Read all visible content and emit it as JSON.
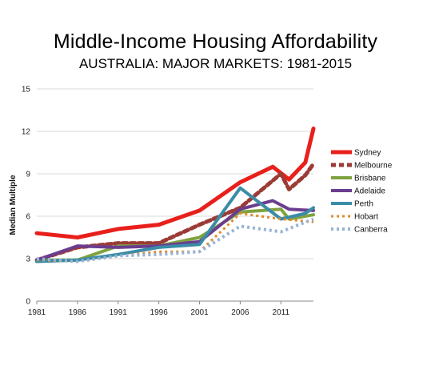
{
  "chart_data": {
    "type": "line",
    "title": "Middle-Income Housing Affordability",
    "subtitle": "AUSTRALIA: MAJOR MARKETS: 1981-2015",
    "xlabel": "",
    "ylabel": "Median Multiple",
    "xlim": [
      1981,
      2015
    ],
    "ylim": [
      0,
      15
    ],
    "yticks": [
      0,
      3,
      6,
      9,
      12,
      15
    ],
    "xticks": [
      1981,
      1986,
      1991,
      1996,
      2001,
      2006,
      2011
    ],
    "grid": "horizontal",
    "legend_position": "right",
    "series": [
      {
        "name": "Sydney",
        "color": "#e8201c",
        "style": "solid",
        "width": 5,
        "x": [
          1981,
          1986,
          1991,
          1996,
          2001,
          2006,
          2010,
          2012,
          2014,
          2015
        ],
        "y": [
          4.8,
          4.5,
          5.1,
          5.4,
          6.4,
          8.4,
          9.5,
          8.6,
          9.8,
          12.2
        ]
      },
      {
        "name": "Melbourne",
        "color": "#9b3b36",
        "style": "dashed",
        "width": 5,
        "x": [
          1981,
          1986,
          1991,
          1996,
          2001,
          2006,
          2011,
          2012,
          2014,
          2015
        ],
        "y": [
          2.9,
          3.8,
          4.1,
          4.1,
          5.4,
          6.6,
          9.0,
          7.9,
          8.9,
          9.7
        ]
      },
      {
        "name": "Brisbane",
        "color": "#7fa23f",
        "style": "solid",
        "width": 4,
        "x": [
          1981,
          1986,
          1991,
          1996,
          2001,
          2006,
          2011,
          2012,
          2015
        ],
        "y": [
          2.9,
          2.9,
          3.9,
          3.9,
          4.5,
          6.3,
          6.5,
          5.8,
          6.1
        ]
      },
      {
        "name": "Adelaide",
        "color": "#6b3d8f",
        "style": "solid",
        "width": 4,
        "x": [
          1981,
          1986,
          1991,
          1996,
          2001,
          2006,
          2010,
          2012,
          2015
        ],
        "y": [
          2.9,
          3.9,
          3.8,
          3.9,
          4.2,
          6.5,
          7.1,
          6.5,
          6.4
        ]
      },
      {
        "name": "Perth",
        "color": "#3a8ca7",
        "style": "solid",
        "width": 4,
        "x": [
          1981,
          1986,
          1991,
          1996,
          2001,
          2006,
          2011,
          2014,
          2015
        ],
        "y": [
          2.8,
          2.9,
          3.3,
          3.8,
          4.0,
          8.0,
          5.8,
          6.2,
          6.6
        ]
      },
      {
        "name": "Hobart",
        "color": "#e08a2b",
        "style": "dotted",
        "width": 3,
        "x": [
          1981,
          1986,
          1991,
          1996,
          2001,
          2006,
          2011,
          2015
        ],
        "y": [
          2.9,
          2.8,
          3.2,
          3.5,
          3.5,
          6.2,
          5.8,
          5.6
        ]
      },
      {
        "name": "Canberra",
        "color": "#95b3d7",
        "style": "dotted",
        "width": 4,
        "x": [
          1981,
          1986,
          1991,
          1996,
          2001,
          2006,
          2011,
          2015
        ],
        "y": [
          3.0,
          2.8,
          3.2,
          3.3,
          3.5,
          5.3,
          4.9,
          5.8
        ]
      }
    ]
  }
}
